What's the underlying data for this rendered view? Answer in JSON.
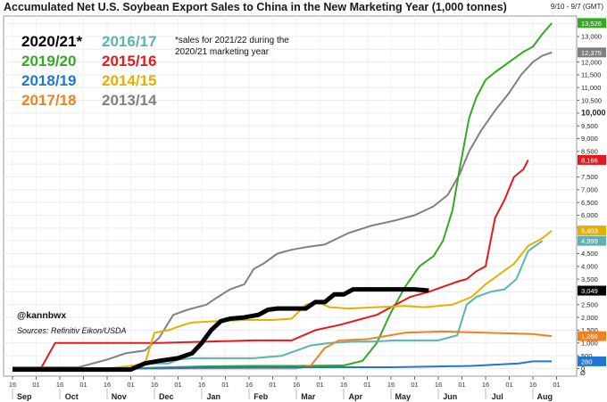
{
  "chart_data": {
    "type": "line",
    "title": "Accumulated Net U.S. Soybean Export Sales to China in the New Marketing Year (1,000 tonnes)",
    "date_range": "9/10 - 9/7 (GMT)",
    "note": [
      "*sales for 2021/22 during the",
      "2020/21 marketing year"
    ],
    "handle": "@kannbwx",
    "sources": "Sources: Refinitiv Eikon/USDA",
    "ylim": [
      -300,
      13800
    ],
    "yticks": [
      {
        "v": 13000,
        "label": "13,000"
      },
      {
        "v": 12000,
        "label": "12,000"
      },
      {
        "v": 11500,
        "label": "11,500"
      },
      {
        "v": 11000,
        "label": "11,000"
      },
      {
        "v": 10500,
        "label": "10,500"
      },
      {
        "v": 10000,
        "label": "10,000",
        "bold": true
      },
      {
        "v": 9500,
        "label": "9,500"
      },
      {
        "v": 9000,
        "label": "9,000"
      },
      {
        "v": 8500,
        "label": "8,500"
      },
      {
        "v": 7500,
        "label": "7,500"
      },
      {
        "v": 7000,
        "label": "7,000"
      },
      {
        "v": 6500,
        "label": "6,500"
      },
      {
        "v": 6000,
        "label": "6,000"
      },
      {
        "v": 5500,
        "label": "5,500"
      },
      {
        "v": 4500,
        "label": "4,500"
      },
      {
        "v": 4000,
        "label": "4,000"
      },
      {
        "v": 3500,
        "label": "3,500"
      },
      {
        "v": 2500,
        "label": "2,500"
      },
      {
        "v": 2000,
        "label": "2,000"
      },
      {
        "v": 1500,
        "label": "1,500"
      },
      {
        "v": 1000,
        "label": "1,000"
      },
      {
        "v": 500,
        "label": "500"
      },
      {
        "v": 0,
        "label": "0"
      }
    ],
    "x_day_ticks": [
      "16",
      "01",
      "16",
      "01",
      "16",
      "01",
      "16",
      "01",
      "16",
      "01",
      "16",
      "01",
      "16",
      "01",
      "16",
      "01",
      "16",
      "01",
      "16",
      "01",
      "16",
      "01",
      "16",
      "01"
    ],
    "x_months": [
      "Sep",
      "Oct",
      "Nov",
      "Dec",
      "Jan",
      "Feb",
      "Mar",
      "Apr",
      "May",
      "Jun",
      "Jul",
      "Aug"
    ],
    "series": [
      {
        "name": "2013/14",
        "color": "#808080",
        "width": 2,
        "end_label": "12,375",
        "label_color": "#808080",
        "label_text_color": "#ffffff",
        "points": [
          [
            0,
            50
          ],
          [
            2.8,
            50
          ],
          [
            3.4,
            200
          ],
          [
            4.0,
            350
          ],
          [
            4.8,
            600
          ],
          [
            5.2,
            650
          ],
          [
            5.6,
            700
          ],
          [
            6.2,
            1200
          ],
          [
            6.8,
            2100
          ],
          [
            7.4,
            2300
          ],
          [
            8.2,
            2500
          ],
          [
            8.6,
            2750
          ],
          [
            9.2,
            3100
          ],
          [
            9.8,
            3300
          ],
          [
            10.2,
            3900
          ],
          [
            10.6,
            4100
          ],
          [
            11.2,
            4500
          ],
          [
            11.8,
            4650
          ],
          [
            12.4,
            4750
          ],
          [
            13.2,
            4850
          ],
          [
            14.2,
            5300
          ],
          [
            15.2,
            5600
          ],
          [
            16.2,
            5800
          ],
          [
            17.0,
            6000
          ],
          [
            17.8,
            6350
          ],
          [
            18.4,
            6800
          ],
          [
            18.9,
            7600
          ],
          [
            19.3,
            8500
          ],
          [
            19.8,
            9300
          ],
          [
            20.4,
            10100
          ],
          [
            21.0,
            10800
          ],
          [
            21.5,
            11500
          ],
          [
            22.0,
            12000
          ],
          [
            22.4,
            12250
          ],
          [
            22.8,
            12375
          ]
        ]
      },
      {
        "name": "2019/20",
        "color": "#33aa22",
        "width": 2,
        "end_label": "13,526",
        "label_color": "#33aa22",
        "label_text_color": "#ffffff",
        "points": [
          [
            0,
            0
          ],
          [
            5.0,
            0
          ],
          [
            6.0,
            30
          ],
          [
            8.0,
            80
          ],
          [
            10.0,
            100
          ],
          [
            12.0,
            100
          ],
          [
            14.0,
            120
          ],
          [
            14.8,
            300
          ],
          [
            15.4,
            1000
          ],
          [
            16.0,
            2200
          ],
          [
            16.6,
            3200
          ],
          [
            17.2,
            4000
          ],
          [
            17.8,
            4400
          ],
          [
            18.2,
            5000
          ],
          [
            18.6,
            6200
          ],
          [
            18.9,
            7800
          ],
          [
            19.3,
            9800
          ],
          [
            19.6,
            10600
          ],
          [
            20.0,
            11300
          ],
          [
            20.4,
            11600
          ],
          [
            21.0,
            12000
          ],
          [
            21.6,
            12400
          ],
          [
            22.0,
            12600
          ],
          [
            22.4,
            13100
          ],
          [
            22.8,
            13526
          ]
        ]
      },
      {
        "name": "2015/16",
        "color": "#e31a1c",
        "width": 2,
        "end_label": "8,166",
        "label_color": "#e31a1c",
        "label_text_color": "#ffffff",
        "points": [
          [
            0,
            0
          ],
          [
            1.2,
            0
          ],
          [
            1.8,
            1000
          ],
          [
            4.0,
            1000
          ],
          [
            6.2,
            1000
          ],
          [
            8.2,
            1050
          ],
          [
            10.2,
            1100
          ],
          [
            11.8,
            1100
          ],
          [
            12.8,
            1500
          ],
          [
            13.8,
            1700
          ],
          [
            14.6,
            1900
          ],
          [
            15.4,
            2100
          ],
          [
            16.2,
            2500
          ],
          [
            16.8,
            2800
          ],
          [
            17.6,
            3000
          ],
          [
            18.2,
            3200
          ],
          [
            18.8,
            3400
          ],
          [
            19.2,
            3500
          ],
          [
            19.6,
            3800
          ],
          [
            20.0,
            4000
          ],
          [
            20.4,
            5900
          ],
          [
            20.8,
            6600
          ],
          [
            21.2,
            7500
          ],
          [
            21.6,
            7800
          ],
          [
            21.8,
            8166
          ]
        ]
      },
      {
        "name": "2014/15",
        "color": "#e6b000",
        "width": 2,
        "end_label": "5,403",
        "label_color": "#e6b000",
        "label_text_color": "#ffffff",
        "points": [
          [
            0,
            0
          ],
          [
            4.0,
            0
          ],
          [
            5.0,
            100
          ],
          [
            5.6,
            200
          ],
          [
            6.0,
            1400
          ],
          [
            6.6,
            1500
          ],
          [
            7.2,
            1700
          ],
          [
            7.6,
            1800
          ],
          [
            8.6,
            1850
          ],
          [
            9.8,
            1900
          ],
          [
            11.0,
            1900
          ],
          [
            11.8,
            1950
          ],
          [
            12.4,
            2500
          ],
          [
            12.9,
            2600
          ],
          [
            13.4,
            2400
          ],
          [
            14.2,
            2350
          ],
          [
            15.4,
            2400
          ],
          [
            16.6,
            2450
          ],
          [
            17.4,
            2400
          ],
          [
            18.6,
            2500
          ],
          [
            19.4,
            2800
          ],
          [
            20.0,
            3300
          ],
          [
            20.6,
            3700
          ],
          [
            21.2,
            4100
          ],
          [
            21.8,
            4800
          ],
          [
            22.4,
            5100
          ],
          [
            22.8,
            5403
          ]
        ]
      },
      {
        "name": "2016/17",
        "color": "#5ab4b4",
        "width": 2,
        "end_label": "4,999",
        "label_color": "#5ab4b4",
        "label_text_color": "#ffffff",
        "points": [
          [
            0,
            0
          ],
          [
            5.0,
            0
          ],
          [
            5.4,
            150
          ],
          [
            6.0,
            200
          ],
          [
            6.6,
            200
          ],
          [
            7.0,
            350
          ],
          [
            7.6,
            400
          ],
          [
            9.0,
            400
          ],
          [
            10.2,
            400
          ],
          [
            11.4,
            500
          ],
          [
            12.0,
            700
          ],
          [
            12.6,
            900
          ],
          [
            13.4,
            1000
          ],
          [
            14.4,
            1050
          ],
          [
            15.2,
            1050
          ],
          [
            16.2,
            1100
          ],
          [
            17.2,
            1100
          ],
          [
            18.0,
            1100
          ],
          [
            18.8,
            1300
          ],
          [
            19.2,
            2500
          ],
          [
            19.6,
            2800
          ],
          [
            20.2,
            3000
          ],
          [
            20.8,
            3100
          ],
          [
            21.3,
            3500
          ],
          [
            21.8,
            4600
          ],
          [
            22.4,
            4999
          ]
        ]
      },
      {
        "name": "2017/18",
        "color": "#f08020",
        "width": 2,
        "end_label": "1,266",
        "label_color": "#f08020",
        "label_text_color": "#ffffff",
        "points": [
          [
            0,
            0
          ],
          [
            3.0,
            0
          ],
          [
            4.0,
            0
          ],
          [
            8.0,
            0
          ],
          [
            12.0,
            0
          ],
          [
            12.6,
            100
          ],
          [
            13.2,
            800
          ],
          [
            13.8,
            1100
          ],
          [
            15.0,
            1150
          ],
          [
            16.6,
            1400
          ],
          [
            18.2,
            1450
          ],
          [
            20.0,
            1400
          ],
          [
            22.0,
            1350
          ],
          [
            22.8,
            1266
          ]
        ]
      },
      {
        "name": "2018/19",
        "color": "#1f77d4",
        "width": 2,
        "end_label": "280",
        "label_color": "#1f77d4",
        "label_text_color": "#ffffff",
        "points": [
          [
            0,
            0
          ],
          [
            4.0,
            0
          ],
          [
            6.0,
            0
          ],
          [
            8.0,
            30
          ],
          [
            10.0,
            50
          ],
          [
            12.0,
            50
          ],
          [
            14.0,
            50
          ],
          [
            16.0,
            50
          ],
          [
            18.0,
            80
          ],
          [
            19.4,
            100
          ],
          [
            20.4,
            150
          ],
          [
            21.4,
            200
          ],
          [
            22.0,
            280
          ],
          [
            22.8,
            280
          ]
        ]
      },
      {
        "name": "2020/21*",
        "color": "#000000",
        "width": 5,
        "end_label": "3,049",
        "label_color": "#000000",
        "label_text_color": "#ffffff",
        "points": [
          [
            0,
            -40
          ],
          [
            5.0,
            -40
          ],
          [
            5.6,
            200
          ],
          [
            6.2,
            300
          ],
          [
            7.0,
            400
          ],
          [
            7.6,
            600
          ],
          [
            8.0,
            1000
          ],
          [
            8.4,
            1500
          ],
          [
            8.8,
            1850
          ],
          [
            9.2,
            1950
          ],
          [
            9.8,
            2000
          ],
          [
            10.4,
            2100
          ],
          [
            10.8,
            2300
          ],
          [
            11.2,
            2350
          ],
          [
            12.4,
            2350
          ],
          [
            12.8,
            2600
          ],
          [
            13.2,
            2600
          ],
          [
            13.6,
            2900
          ],
          [
            14.0,
            2900
          ],
          [
            14.4,
            3100
          ],
          [
            15.2,
            3100
          ],
          [
            16.2,
            3100
          ],
          [
            17.0,
            3100
          ],
          [
            17.6,
            3049
          ]
        ]
      }
    ],
    "legend": [
      {
        "label": "2020/21*",
        "color": "#000000"
      },
      {
        "label": "2016/17",
        "color": "#5ab4b4"
      },
      {
        "label": "2019/20",
        "color": "#33aa22"
      },
      {
        "label": "2015/16",
        "color": "#e31a1c"
      },
      {
        "label": "2018/19",
        "color": "#1f77d4"
      },
      {
        "label": "2014/15",
        "color": "#e6b000"
      },
      {
        "label": "2017/18",
        "color": "#f08020"
      },
      {
        "label": "2013/14",
        "color": "#808080"
      }
    ],
    "axis_corner_glyph": "Ø"
  }
}
